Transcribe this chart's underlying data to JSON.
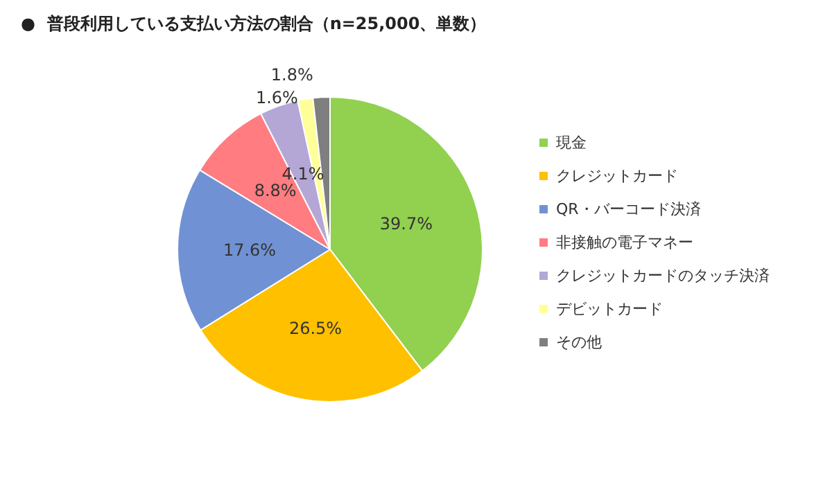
{
  "chart_data": {
    "type": "pie",
    "title": "●  普段利用している支払い方法の割合（n=25,000、単数）",
    "categories": [
      "現金",
      "クレジットカード",
      "QR・バーコード決済",
      "非接触の電子マネー",
      "クレジットカードのタッチ決済",
      "デビットカード",
      "その他"
    ],
    "values": [
      39.7,
      26.5,
      17.6,
      8.8,
      4.1,
      1.6,
      1.8
    ],
    "colors": [
      "#92d050",
      "#ffc000",
      "#7092d4",
      "#ff7c80",
      "#b4a7d6",
      "#ffff99",
      "#7f7f7f"
    ],
    "value_labels": [
      "39.7%",
      "26.5%",
      "17.6%",
      "8.8%",
      "4.1%",
      "1.6%",
      "1.8%"
    ],
    "legend": "right"
  }
}
